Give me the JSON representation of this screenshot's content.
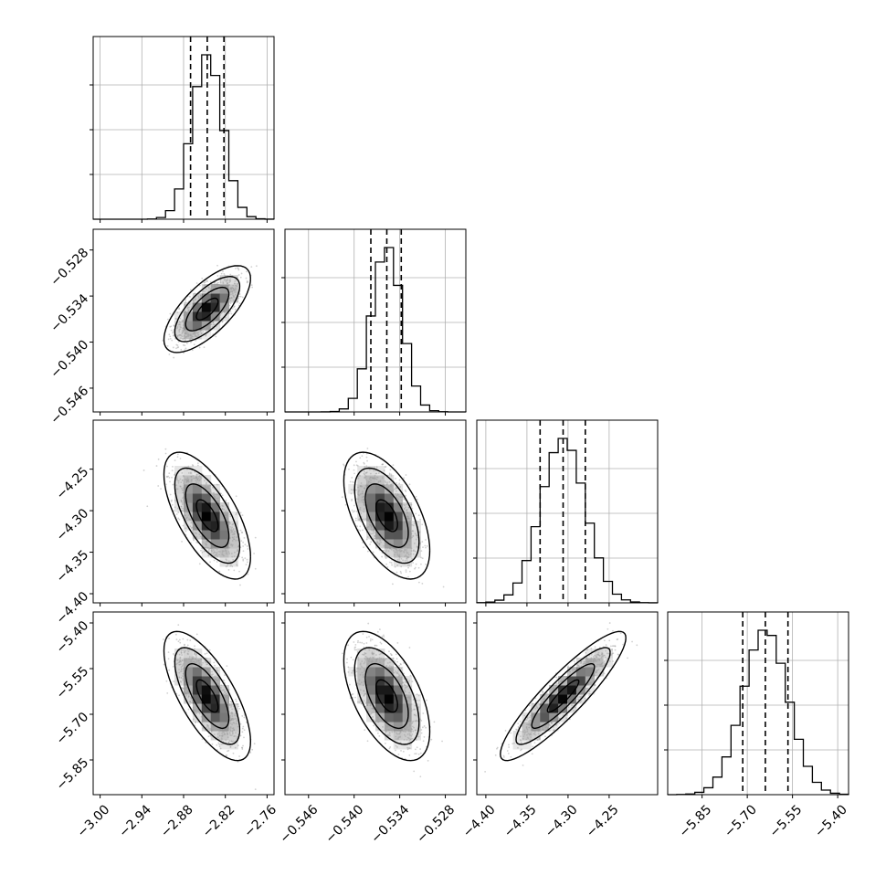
{
  "chart_data": {
    "type": "corner",
    "title": "",
    "parameters": [
      {
        "name": "",
        "range": [
          -3.01,
          -2.75
        ],
        "ticks": [
          -3.0,
          -2.94,
          -2.88,
          -2.82,
          -2.76
        ],
        "tick_labels": [
          "−3.00",
          "−2.94",
          "−2.88",
          "−2.82",
          "−2.76"
        ],
        "mean": -2.846,
        "sd": 0.022,
        "quantiles": [
          -2.87,
          -2.846,
          -2.822
        ]
      },
      {
        "name": "",
        "range": [
          -0.5491,
          -0.5253
        ],
        "ticks": [
          -0.546,
          -0.54,
          -0.534,
          -0.528
        ],
        "tick_labels": [
          "−0.546",
          "−0.540",
          "−0.534",
          "−0.528"
        ],
        "mean": -0.5357,
        "sd": 0.002,
        "quantiles": [
          -0.5378,
          -0.5357,
          -0.5338
        ]
      },
      {
        "name": "",
        "range": [
          -4.411,
          -4.191
        ],
        "ticks": [
          -4.4,
          -4.35,
          -4.3,
          -4.25
        ],
        "tick_labels": [
          "−4.40",
          "−4.35",
          "−4.30",
          "−4.25"
        ],
        "mean": -4.306,
        "sd": 0.027,
        "quantiles": [
          -4.334,
          -4.306,
          -4.279
        ]
      },
      {
        "name": "",
        "range": [
          -5.964,
          -5.364
        ],
        "ticks": [
          -5.85,
          -5.7,
          -5.55,
          -5.4
        ],
        "tick_labels": [
          "−5.85",
          "−5.70",
          "−5.55",
          "−5.40"
        ],
        "mean": -5.64,
        "sd": 0.075,
        "quantiles": [
          -5.715,
          -5.64,
          -5.565
        ]
      }
    ],
    "correlations": [
      {
        "pair": [
          0,
          1
        ],
        "rho": 0.7
      },
      {
        "pair": [
          0,
          2
        ],
        "rho": -0.65
      },
      {
        "pair": [
          1,
          2
        ],
        "rho": -0.55
      },
      {
        "pair": [
          0,
          3
        ],
        "rho": -0.7
      },
      {
        "pair": [
          1,
          3
        ],
        "rho": -0.55
      },
      {
        "pair": [
          2,
          3
        ],
        "rho": 0.9
      }
    ],
    "histogram_bins": 20,
    "contour_levels": [
      0.39,
      0.86,
      0.99
    ],
    "grid": true
  }
}
